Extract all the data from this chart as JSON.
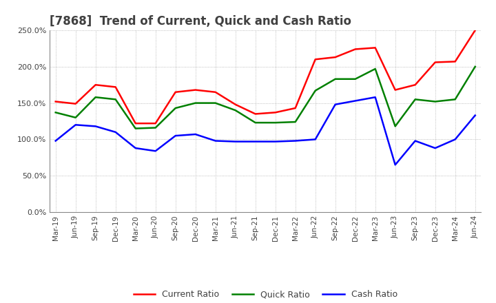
{
  "title": "[7868]  Trend of Current, Quick and Cash Ratio",
  "x_labels": [
    "Mar-19",
    "Jun-19",
    "Sep-19",
    "Dec-19",
    "Mar-20",
    "Jun-20",
    "Sep-20",
    "Dec-20",
    "Mar-21",
    "Jun-21",
    "Sep-21",
    "Dec-21",
    "Mar-22",
    "Jun-22",
    "Sep-22",
    "Dec-22",
    "Mar-23",
    "Jun-23",
    "Sep-23",
    "Dec-23",
    "Mar-24",
    "Jun-24"
  ],
  "current_ratio": [
    152.0,
    149.0,
    175.0,
    172.0,
    122.0,
    122.0,
    165.0,
    168.0,
    165.0,
    148.0,
    135.0,
    137.0,
    143.0,
    210.0,
    213.0,
    224.0,
    226.0,
    168.0,
    175.0,
    206.0,
    207.0,
    250.0
  ],
  "quick_ratio": [
    137.0,
    130.0,
    158.0,
    155.0,
    115.0,
    116.0,
    143.0,
    150.0,
    150.0,
    140.0,
    123.0,
    123.0,
    124.0,
    167.0,
    183.0,
    183.0,
    197.0,
    118.0,
    155.0,
    152.0,
    155.0,
    200.0
  ],
  "cash_ratio": [
    98.0,
    120.0,
    118.0,
    110.0,
    88.0,
    84.0,
    105.0,
    107.0,
    98.0,
    97.0,
    97.0,
    97.0,
    98.0,
    100.0,
    148.0,
    153.0,
    158.0,
    65.0,
    98.0,
    88.0,
    100.0,
    133.0
  ],
  "current_color": "#FF0000",
  "quick_color": "#008000",
  "cash_color": "#0000FF",
  "ylim": [
    0,
    250
  ],
  "yticks": [
    0,
    50,
    100,
    150,
    200,
    250
  ],
  "bg_color": "#FFFFFF",
  "grid_color": "#AAAAAA",
  "title_color": "#404040",
  "title_fontsize": 12
}
